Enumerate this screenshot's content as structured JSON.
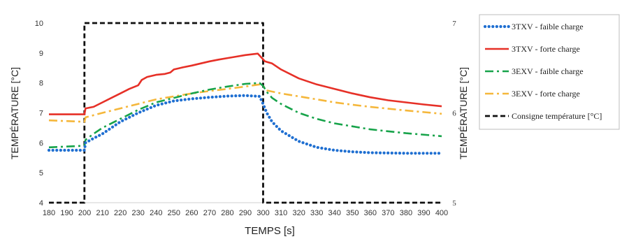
{
  "chart_data": {
    "type": "line",
    "title": "",
    "xlabel": "TEMPS [s]",
    "ylabel_left": "TEMPÉRATURE [°C]",
    "ylabel_right": "TEMPÉRATURE [°C]",
    "xlim": [
      180,
      400
    ],
    "ylim_left": [
      4,
      10
    ],
    "ylim_right": [
      5,
      7
    ],
    "x_ticks": [
      "180",
      "190",
      "200",
      "210",
      "220",
      "230",
      "240",
      "250",
      "260",
      "270",
      "280",
      "290",
      "300",
      "310",
      "320",
      "330",
      "340",
      "350",
      "360",
      "370",
      "380",
      "390",
      "400"
    ],
    "y_ticks_left": [
      "4",
      "5",
      "6",
      "7",
      "8",
      "9",
      "10"
    ],
    "y_ticks_right": [
      "5",
      "6",
      "7"
    ],
    "grid": false,
    "legend_position": "right",
    "series": [
      {
        "name": "3TXV - faible charge",
        "color": "#1f6fd1",
        "style": "dotted",
        "axis": "left",
        "x": [
          180,
          199.9,
          200.5,
          205,
          210,
          215,
          220,
          225,
          230,
          240,
          250,
          260,
          270,
          280,
          290,
          298,
          300,
          302,
          305,
          310,
          320,
          330,
          340,
          350,
          360,
          380,
          400
        ],
        "y": [
          5.75,
          5.75,
          6.0,
          6.15,
          6.3,
          6.5,
          6.7,
          6.85,
          7.0,
          7.25,
          7.4,
          7.47,
          7.52,
          7.56,
          7.58,
          7.55,
          7.3,
          7.0,
          6.7,
          6.4,
          6.05,
          5.85,
          5.75,
          5.7,
          5.67,
          5.65,
          5.65
        ]
      },
      {
        "name": "3TXV - forte charge",
        "color": "#e63027",
        "style": "solid",
        "axis": "left",
        "x": [
          180,
          199.9,
          200.5,
          205,
          210,
          215,
          220,
          225,
          230,
          232,
          235,
          240,
          245,
          248,
          250,
          255,
          260,
          265,
          270,
          275,
          280,
          285,
          290,
          297,
          299,
          301,
          305,
          310,
          320,
          330,
          340,
          350,
          360,
          370,
          380,
          390,
          400
        ],
        "y": [
          6.95,
          6.95,
          7.15,
          7.2,
          7.35,
          7.5,
          7.65,
          7.8,
          7.92,
          8.1,
          8.2,
          8.27,
          8.3,
          8.35,
          8.45,
          8.52,
          8.58,
          8.65,
          8.72,
          8.78,
          8.83,
          8.88,
          8.93,
          8.98,
          8.85,
          8.72,
          8.65,
          8.45,
          8.15,
          7.95,
          7.8,
          7.65,
          7.52,
          7.42,
          7.35,
          7.28,
          7.22
        ]
      },
      {
        "name": "3EXV - faible charge",
        "color": "#17a34a",
        "style": "dashdot",
        "axis": "left",
        "x": [
          180,
          199.9,
          200.5,
          205,
          210,
          220,
          230,
          240,
          250,
          260,
          270,
          280,
          290,
          298,
          300,
          302,
          305,
          310,
          320,
          330,
          340,
          350,
          360,
          380,
          400
        ],
        "y": [
          5.85,
          5.9,
          6.1,
          6.3,
          6.5,
          6.8,
          7.1,
          7.35,
          7.5,
          7.65,
          7.78,
          7.88,
          7.97,
          8.0,
          7.9,
          7.7,
          7.5,
          7.3,
          7.0,
          6.8,
          6.65,
          6.55,
          6.45,
          6.32,
          6.22
        ]
      },
      {
        "name": "3EXV - forte charge",
        "color": "#f5b73b",
        "style": "dashdot",
        "axis": "left",
        "x": [
          180,
          199.9,
          200.5,
          210,
          220,
          230,
          240,
          250,
          260,
          270,
          280,
          290,
          298,
          300,
          302,
          310,
          320,
          330,
          340,
          350,
          360,
          380,
          400
        ],
        "y": [
          6.75,
          6.7,
          6.85,
          7.0,
          7.15,
          7.3,
          7.45,
          7.55,
          7.65,
          7.73,
          7.8,
          7.88,
          7.95,
          7.9,
          7.75,
          7.65,
          7.55,
          7.45,
          7.35,
          7.27,
          7.2,
          7.08,
          6.97
        ]
      },
      {
        "name": "Consigne température [°C]",
        "color": "#111111",
        "style": "dashed",
        "axis": "right",
        "x": [
          180,
          199.9,
          199.9,
          300,
          300,
          400
        ],
        "y": [
          5,
          5,
          7,
          7,
          5,
          5
        ]
      }
    ]
  }
}
